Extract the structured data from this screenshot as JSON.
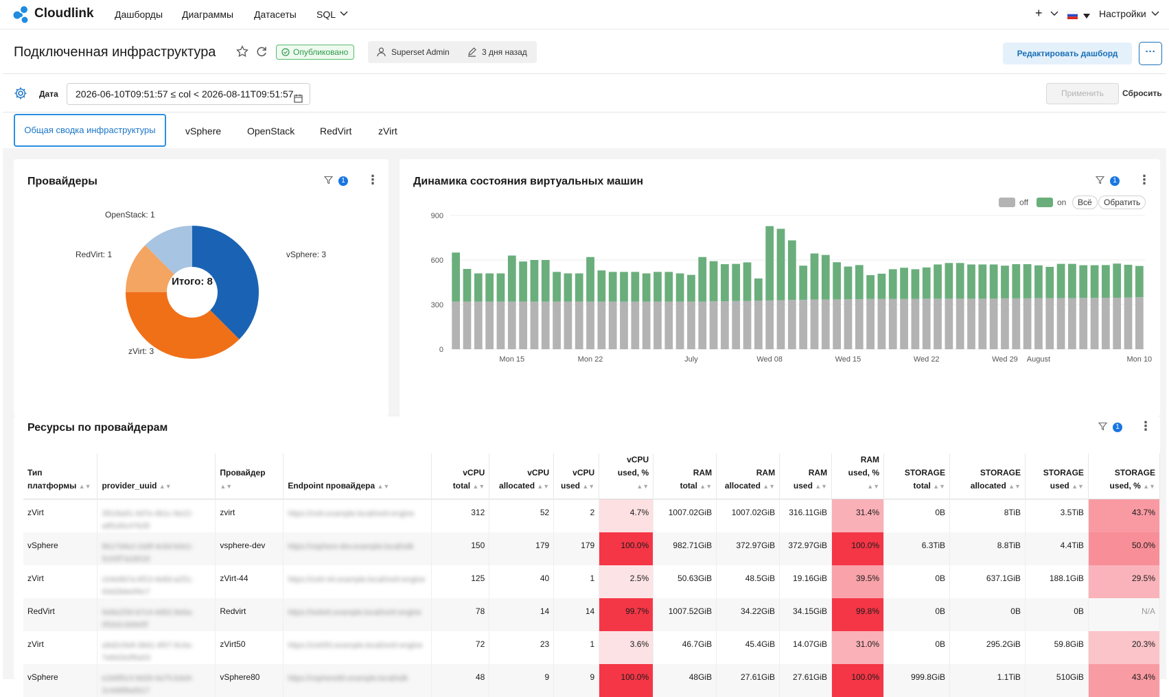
{
  "nav": {
    "brand": "Cloudlink",
    "items": [
      "Дашборды",
      "Диаграммы",
      "Датасеты",
      "SQL"
    ],
    "plus_label": "+",
    "settings_label": "Настройки",
    "colors": {
      "brand": "#1f8ce0"
    }
  },
  "header": {
    "title": "Подключенная инфраструктура",
    "status": "Опубликовано",
    "owner": "Superset Admin",
    "modified": "3 дня назад",
    "edit_label": "Редактировать дашборд",
    "more_label": "···"
  },
  "filter_bar": {
    "date_label": "Дата",
    "date_value": "2026-06-10T09:51:57 ≤ col < 2026-08-11T09:51:57",
    "apply_label": "Применить",
    "reset_label": "Сбросить"
  },
  "tabs": [
    "Общая сводка инфраструктуры",
    "vSphere",
    "OpenStack",
    "RedVirt",
    "zVirt"
  ],
  "providers_card": {
    "title": "Провайдеры",
    "filter_count": "1",
    "total_label": "Итого: 8",
    "slice_labels": [
      "vSphere: 3",
      "zVirt: 3",
      "RedVirt: 1",
      "OpenStack: 1"
    ]
  },
  "vm_card": {
    "title": "Динамика состояния виртуальных машин",
    "filter_count": "1",
    "legend": [
      "off",
      "on"
    ],
    "legend_all": "Всё",
    "legend_invert": "Обратить",
    "y_ticks": [
      "900",
      "600",
      "300",
      "0"
    ],
    "x_ticks": [
      "Mon 15",
      "Mon 22",
      "July",
      "Wed 08",
      "Wed 15",
      "Wed 22",
      "Wed 29",
      "August",
      "Mon 10"
    ]
  },
  "resources_card": {
    "title": "Ресурсы по провайдерам",
    "filter_count": "1",
    "columns": [
      [
        "Тип",
        "платформы"
      ],
      [
        "",
        "provider_uuid"
      ],
      [
        "",
        "Провайдер"
      ],
      [
        "",
        "Endpoint провайдера"
      ],
      [
        "vCPU",
        "total"
      ],
      [
        "vCPU",
        "allocated"
      ],
      [
        "vCPU",
        "used"
      ],
      [
        "vCPU",
        "used, %"
      ],
      [
        "RAM",
        "total"
      ],
      [
        "RAM",
        "allocated"
      ],
      [
        "RAM",
        "used"
      ],
      [
        "RAM",
        "used, %"
      ],
      [
        "STORAGE",
        "total"
      ],
      [
        "STORAGE",
        "allocated"
      ],
      [
        "STORAGE",
        "used"
      ],
      [
        "STORAGE",
        "used, %"
      ]
    ],
    "rows": [
      [
        "zVirt",
        "3f2c8a91-4d7e-4b1c-9e22-a8f1d0c47b35",
        "zvirt",
        "https://zvirt.example.local/ovirt-engine",
        "312",
        "52",
        "2",
        "4.7%",
        "1007.02GiB",
        "1007.02GiB",
        "316.11GiB",
        "31.4%",
        "0B",
        "8TiB",
        "3.5TiB",
        "43.7%"
      ],
      [
        "vSphere",
        "8b17d4e2-2a9f-4c6d-b0e1-5c93f7a2d018",
        "vsphere-dev",
        "https://vsphere-dev.example.local/sdk",
        "150",
        "179",
        "179",
        "100.0%",
        "982.71GiB",
        "372.97GiB",
        "372.97GiB",
        "100.0%",
        "6.3TiB",
        "8.8TiB",
        "4.4TiB",
        "50.0%"
      ],
      [
        "zVirt",
        "c04e9b7a-6f13-4e8d-a251-93d2b6e0f4c7",
        "zVirt-44",
        "https://zvirt-44.example.local/ovirt-engine",
        "125",
        "40",
        "1",
        "2.5%",
        "50.63GiB",
        "48.5GiB",
        "19.16GiB",
        "39.5%",
        "0B",
        "637.1GiB",
        "188.1GiB",
        "29.5%"
      ],
      [
        "RedVirt",
        "5e8a1f30-b7c4-4d92-8e6a-0f1b2c3d4e5f",
        "Redvirt",
        "https://redvirt.example.local/ovirt-engine",
        "78",
        "14",
        "14",
        "99.7%",
        "1007.52GiB",
        "34.22GiB",
        "34.15GiB",
        "99.8%",
        "0B",
        "0B",
        "0B",
        "N/A"
      ],
      [
        "zVirt",
        "a9d2c5e8-3b61-4f07-9c4a-7e8d1b2f6a03",
        "zVirt50",
        "https://zvirt50.example.local/ovirt-engine",
        "72",
        "23",
        "1",
        "3.6%",
        "46.7GiB",
        "45.4GiB",
        "14.07GiB",
        "31.0%",
        "0B",
        "295.2GiB",
        "59.8GiB",
        "20.3%"
      ],
      [
        "vSphere",
        "e1b6f0c3-9d28-4a75-b3e9-2c4d6f8a0b17",
        "vSphere80",
        "https://vsphere80.example.local/sdk",
        "48",
        "9",
        "9",
        "100.0%",
        "48GiB",
        "27.61GiB",
        "27.61GiB",
        "100.0%",
        "999.8GiB",
        "1.1TiB",
        "510GiB",
        "43.4%"
      ]
    ],
    "pct_fraction": [
      [
        0.047,
        0.314,
        0.437
      ],
      [
        1.0,
        1.0,
        0.5
      ],
      [
        0.025,
        0.395,
        0.295
      ],
      [
        0.997,
        0.998,
        null
      ],
      [
        0.036,
        0.31,
        0.203
      ],
      [
        1.0,
        1.0,
        0.434
      ]
    ]
  },
  "chart_data": [
    {
      "type": "pie",
      "title": "Провайдеры",
      "categories": [
        "vSphere",
        "zVirt",
        "RedVirt",
        "OpenStack"
      ],
      "values": [
        3,
        3,
        1,
        1
      ],
      "colors": [
        "#1a63b4",
        "#f07018",
        "#f4a562",
        "#a7c4e2"
      ],
      "total": 8
    },
    {
      "type": "bar",
      "stacked": true,
      "title": "Динамика состояния виртуальных машин",
      "ylim": [
        0,
        900
      ],
      "x": [
        "2026-06-10",
        "2026-06-11",
        "2026-06-12",
        "2026-06-13",
        "2026-06-14",
        "2026-06-15",
        "2026-06-16",
        "2026-06-17",
        "2026-06-18",
        "2026-06-19",
        "2026-06-20",
        "2026-06-21",
        "2026-06-22",
        "2026-06-23",
        "2026-06-24",
        "2026-06-25",
        "2026-06-26",
        "2026-06-27",
        "2026-06-28",
        "2026-06-29",
        "2026-06-30",
        "2026-07-01",
        "2026-07-02",
        "2026-07-03",
        "2026-07-04",
        "2026-07-05",
        "2026-07-06",
        "2026-07-07",
        "2026-07-08",
        "2026-07-09",
        "2026-07-10",
        "2026-07-11",
        "2026-07-12",
        "2026-07-13",
        "2026-07-14",
        "2026-07-15",
        "2026-07-16",
        "2026-07-17",
        "2026-07-18",
        "2026-07-19",
        "2026-07-20",
        "2026-07-21",
        "2026-07-22",
        "2026-07-23",
        "2026-07-24",
        "2026-07-25",
        "2026-07-26",
        "2026-07-27",
        "2026-07-28",
        "2026-07-29",
        "2026-07-30",
        "2026-07-31",
        "2026-08-01",
        "2026-08-02",
        "2026-08-03",
        "2026-08-04",
        "2026-08-05",
        "2026-08-06",
        "2026-08-07",
        "2026-08-08",
        "2026-08-09",
        "2026-08-10"
      ],
      "series": [
        {
          "name": "off",
          "color": "#b3b3b3",
          "values": [
            320,
            320,
            320,
            320,
            320,
            320,
            320,
            320,
            320,
            320,
            320,
            320,
            320,
            320,
            320,
            320,
            320,
            320,
            320,
            320,
            320,
            320,
            320,
            322,
            322,
            324,
            324,
            326,
            328,
            330,
            332,
            332,
            334,
            334,
            335,
            336,
            336,
            338,
            338,
            338,
            338,
            338,
            340,
            340,
            340,
            340,
            340,
            340,
            340,
            342,
            342,
            342,
            344,
            344,
            344,
            344,
            345,
            345,
            346,
            346,
            348,
            350
          ]
        },
        {
          "name": "on",
          "color": "#6aae7c",
          "values": [
            330,
            220,
            190,
            190,
            190,
            310,
            270,
            280,
            280,
            200,
            190,
            190,
            300,
            210,
            200,
            200,
            200,
            190,
            200,
            200,
            190,
            180,
            300,
            270,
            250,
            250,
            260,
            150,
            500,
            480,
            400,
            230,
            310,
            300,
            250,
            220,
            230,
            160,
            170,
            200,
            210,
            200,
            210,
            230,
            240,
            240,
            230,
            230,
            230,
            220,
            230,
            230,
            220,
            210,
            230,
            230,
            220,
            220,
            220,
            230,
            220,
            210
          ]
        }
      ]
    }
  ]
}
